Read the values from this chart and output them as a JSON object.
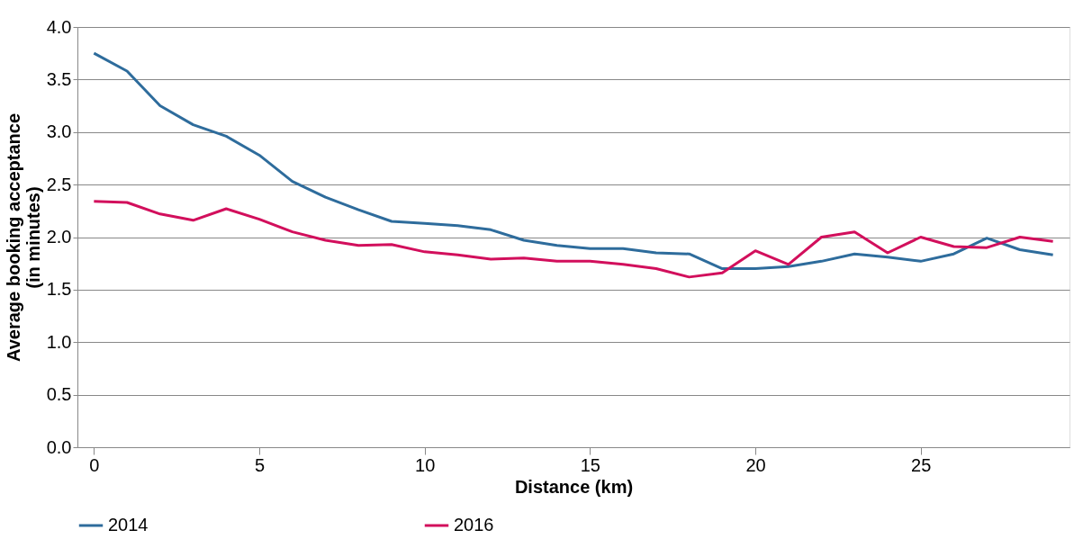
{
  "chart_data": {
    "type": "line",
    "xlabel": "Distance (km)",
    "ylabel": "Average booking acceptance\n(in minutes)",
    "x": [
      0,
      1,
      2,
      3,
      4,
      5,
      6,
      7,
      8,
      9,
      10,
      11,
      12,
      13,
      14,
      15,
      16,
      17,
      18,
      19,
      20,
      21,
      22,
      23,
      24,
      25,
      26,
      27,
      28,
      29
    ],
    "series": [
      {
        "name": "2014",
        "color": "#2e6c9c",
        "values": [
          3.75,
          3.58,
          3.25,
          3.07,
          2.96,
          2.78,
          2.53,
          2.38,
          2.26,
          2.15,
          2.13,
          2.11,
          2.07,
          1.97,
          1.92,
          1.89,
          1.89,
          1.85,
          1.84,
          1.7,
          1.7,
          1.72,
          1.77,
          1.84,
          1.81,
          1.77,
          1.84,
          1.99,
          1.88,
          1.83
        ]
      },
      {
        "name": "2016",
        "color": "#d20f5c",
        "values": [
          2.34,
          2.33,
          2.22,
          2.16,
          2.27,
          2.17,
          2.05,
          1.97,
          1.92,
          1.93,
          1.86,
          1.83,
          1.79,
          1.8,
          1.77,
          1.77,
          1.74,
          1.7,
          1.62,
          1.66,
          1.87,
          1.74,
          2.0,
          2.05,
          1.85,
          2.0,
          1.91,
          1.9,
          2.0,
          1.96
        ]
      }
    ],
    "xlim": [
      -0.5,
      29.5
    ],
    "xticks": [
      0,
      5,
      10,
      15,
      20,
      25
    ],
    "ylim": [
      0,
      4
    ],
    "yticks": [
      {
        "value": 0,
        "label": "0.0"
      },
      {
        "value": 0.5,
        "label": "0.5"
      },
      {
        "value": 1,
        "label": "1.0"
      },
      {
        "value": 1.5,
        "label": "1.5"
      },
      {
        "value": 2,
        "label": "2.0"
      },
      {
        "value": 2.5,
        "label": "2.5"
      },
      {
        "value": 3,
        "label": "3.0"
      },
      {
        "value": 3.5,
        "label": "3.5"
      },
      {
        "value": 4,
        "label": "4.0"
      }
    ],
    "grid": "y",
    "legend": "bottom",
    "marker": "none",
    "line_style": "solid"
  }
}
